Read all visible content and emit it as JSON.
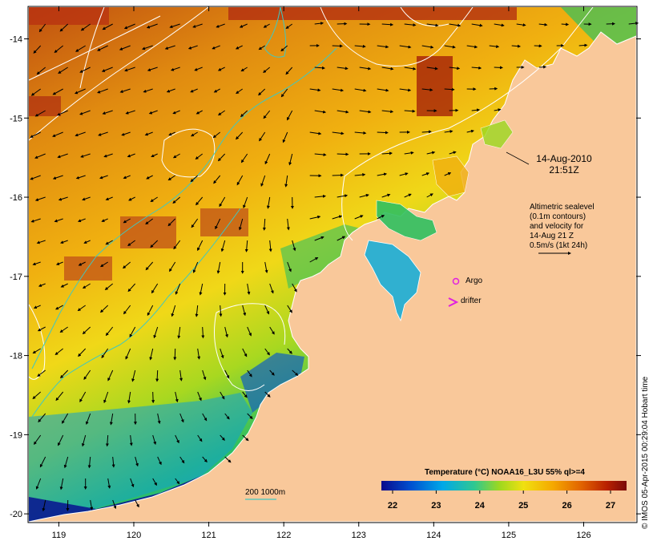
{
  "map": {
    "lon_ticks": [
      "119",
      "120",
      "121",
      "122",
      "123",
      "124",
      "125",
      "126"
    ],
    "lat_ticks": [
      "-14",
      "-15",
      "-16",
      "-17",
      "-18",
      "-19",
      "-20"
    ],
    "lon_range": [
      118.6,
      126.7
    ],
    "lat_range": [
      -20.1,
      -13.6
    ]
  },
  "annotations": {
    "date": "14-Aug-2010",
    "time": "21:51Z",
    "sealevel_lines": [
      "Altimetric sealevel",
      "(0.1m contours)",
      "and velocity for",
      "14-Aug 21 Z",
      "0.5m/s (1kt 24h)"
    ],
    "argo_label": "Argo",
    "drifter_label": "drifter",
    "depth_contour_label": "200  1000m"
  },
  "legend": {
    "title": "Temperature (°C) NOAA16_L3U 55% ql>=4",
    "ticks": [
      "22",
      "23",
      "24",
      "25",
      "26",
      "27"
    ],
    "colors": [
      "#0a0a8c",
      "#0050d0",
      "#00a8e8",
      "#30c890",
      "#9cd820",
      "#f0e010",
      "#f5a800",
      "#e06000",
      "#b82000",
      "#7a0a0a"
    ]
  },
  "credit": "© IMOS 05-Apr-2015 00:29:04 Hobart time",
  "colors": {
    "land": "#f9c89a",
    "contour": "#ffffff",
    "isobath": "#40c8c0",
    "marker": "#e020e0"
  }
}
